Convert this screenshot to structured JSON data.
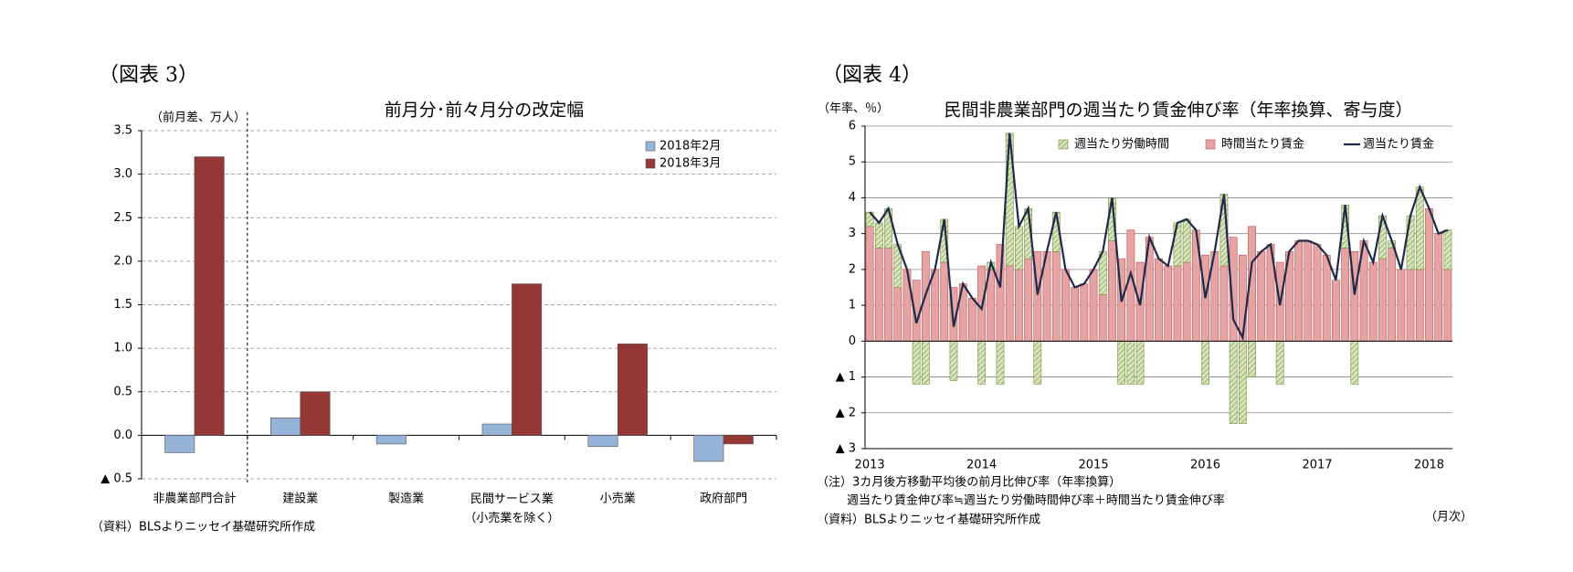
{
  "chart_data": [
    {
      "type": "bar",
      "figure_label": "（図表 3）",
      "title": "前月分･前々月分の改定幅",
      "y_label": "（前月差、万人）",
      "source": "（資料）BLSよりニッセイ基礎研究所作成",
      "categories": [
        "非農業部門合計",
        "建設業",
        "製造業",
        "民間サービス業\n（小売業を除く）",
        "小売業",
        "政府部門"
      ],
      "series": [
        {
          "name": "2018年2月",
          "color": "#95b3d7",
          "values": [
            -0.2,
            0.2,
            -0.1,
            0.13,
            -0.13,
            -0.3
          ]
        },
        {
          "name": "2018年3月",
          "color": "#953735",
          "values": [
            3.2,
            0.5,
            0,
            1.74,
            1.05,
            -0.1
          ]
        }
      ],
      "ylim": [
        -0.5,
        3.5
      ],
      "yticks": [
        {
          "value": -0.5,
          "label": "▲ 0.5"
        },
        {
          "value": 0,
          "label": "0.0"
        },
        0.5,
        {
          "value": 1,
          "label": "1.0"
        },
        1.5,
        {
          "value": 2,
          "label": "2.0"
        },
        2.5,
        {
          "value": 3,
          "label": "3.0"
        },
        3.5
      ],
      "grid": true,
      "grid_style": "dashed",
      "legend": "upper right"
    },
    {
      "type": "combo",
      "figure_label": "（図表 4）",
      "title": "民間非農業部門の週当たり賃金伸び率（年率換算、寄与度）",
      "y_label": "（年率、％）",
      "x_label": "（月次）",
      "notes": [
        "（注）3カ月後方移動平均後の前月比伸び率（年率換算）",
        "週当たり賃金伸び率≒週当たり労働時間伸び率＋時間当たり賃金伸び率",
        "（資料）BLSよりニッセイ基礎研究所作成"
      ],
      "categories": [
        "2013",
        null,
        null,
        null,
        null,
        null,
        null,
        null,
        null,
        null,
        null,
        null,
        "2014",
        null,
        null,
        null,
        null,
        null,
        null,
        null,
        null,
        null,
        null,
        null,
        "2015",
        null,
        null,
        null,
        null,
        null,
        null,
        null,
        null,
        null,
        null,
        null,
        "2016",
        null,
        null,
        null,
        null,
        null,
        null,
        null,
        null,
        null,
        null,
        null,
        "2017",
        null,
        null,
        null,
        null,
        null,
        null,
        null,
        null,
        null,
        null,
        null,
        "2018",
        null,
        null
      ],
      "series": [
        {
          "name": "週当たり労働時間",
          "color": "#d7e4bd",
          "kind": "bar",
          "values": [
            0.4,
            0.7,
            1.1,
            1.2,
            0,
            -1.2,
            -1.2,
            0,
            1.2,
            -1.1,
            0,
            0,
            -1.2,
            0.2,
            -1.2,
            3.7,
            1.2,
            1.4,
            -1.2,
            0,
            1.1,
            0,
            0,
            0,
            0,
            1.2,
            1.2,
            -1.2,
            -1.2,
            -1.2,
            0,
            0,
            0,
            1.2,
            1.2,
            0,
            -1.2,
            0,
            2.0,
            -2.3,
            -2.3,
            -1.0,
            0,
            0,
            -1.2,
            0,
            0,
            0,
            0,
            0,
            0,
            1.2,
            -1.2,
            0,
            0,
            1.2,
            0.2,
            0,
            1.5,
            2.3,
            0,
            0,
            1.1
          ]
        },
        {
          "name": "時間当たり賃金",
          "color": "#e6a3a3",
          "kind": "bar",
          "values": [
            3.2,
            2.6,
            2.6,
            1.5,
            2.0,
            1.7,
            2.5,
            2.0,
            2.2,
            1.5,
            1.6,
            1.2,
            2.1,
            2.0,
            2.7,
            2.1,
            2.0,
            2.3,
            2.5,
            2.5,
            2.5,
            2.0,
            1.5,
            1.6,
            2.0,
            1.3,
            2.8,
            2.3,
            3.1,
            2.2,
            2.9,
            2.3,
            2.1,
            2.1,
            2.2,
            3.1,
            2.4,
            2.5,
            2.1,
            2.9,
            2.4,
            3.2,
            2.5,
            2.7,
            2.2,
            2.5,
            2.8,
            2.8,
            2.7,
            2.4,
            1.7,
            2.6,
            2.5,
            2.8,
            2.2,
            2.3,
            2.6,
            2.0,
            2.0,
            2.0,
            3.7,
            3.0,
            2.0
          ]
        },
        {
          "name": "週当たり賃金",
          "color": "#1f2a4a",
          "kind": "line",
          "values": [
            3.6,
            3.3,
            3.7,
            2.7,
            2.0,
            0.5,
            1.3,
            2.0,
            3.4,
            0.4,
            1.6,
            1.2,
            0.9,
            2.2,
            1.5,
            5.8,
            3.2,
            3.7,
            1.3,
            2.5,
            3.6,
            2.0,
            1.5,
            1.6,
            2.0,
            2.5,
            4.0,
            1.1,
            1.9,
            1.0,
            2.9,
            2.3,
            2.1,
            3.3,
            3.4,
            3.1,
            1.2,
            2.5,
            4.1,
            0.6,
            0.1,
            2.2,
            2.5,
            2.7,
            1.0,
            2.5,
            2.8,
            2.8,
            2.7,
            2.4,
            1.7,
            3.8,
            1.3,
            2.8,
            2.2,
            3.5,
            2.8,
            2.0,
            3.5,
            4.3,
            3.7,
            3.0,
            3.1
          ]
        }
      ],
      "ylim": [
        -3,
        6
      ],
      "yticks": [
        {
          "value": -3,
          "label": "▲ 3"
        },
        {
          "value": -2,
          "label": "▲ 2"
        },
        {
          "value": -1,
          "label": "▲ 1"
        },
        0,
        1,
        2,
        3,
        4,
        5,
        6
      ],
      "grid": true,
      "grid_style": "solid",
      "legend": "upper right"
    }
  ]
}
